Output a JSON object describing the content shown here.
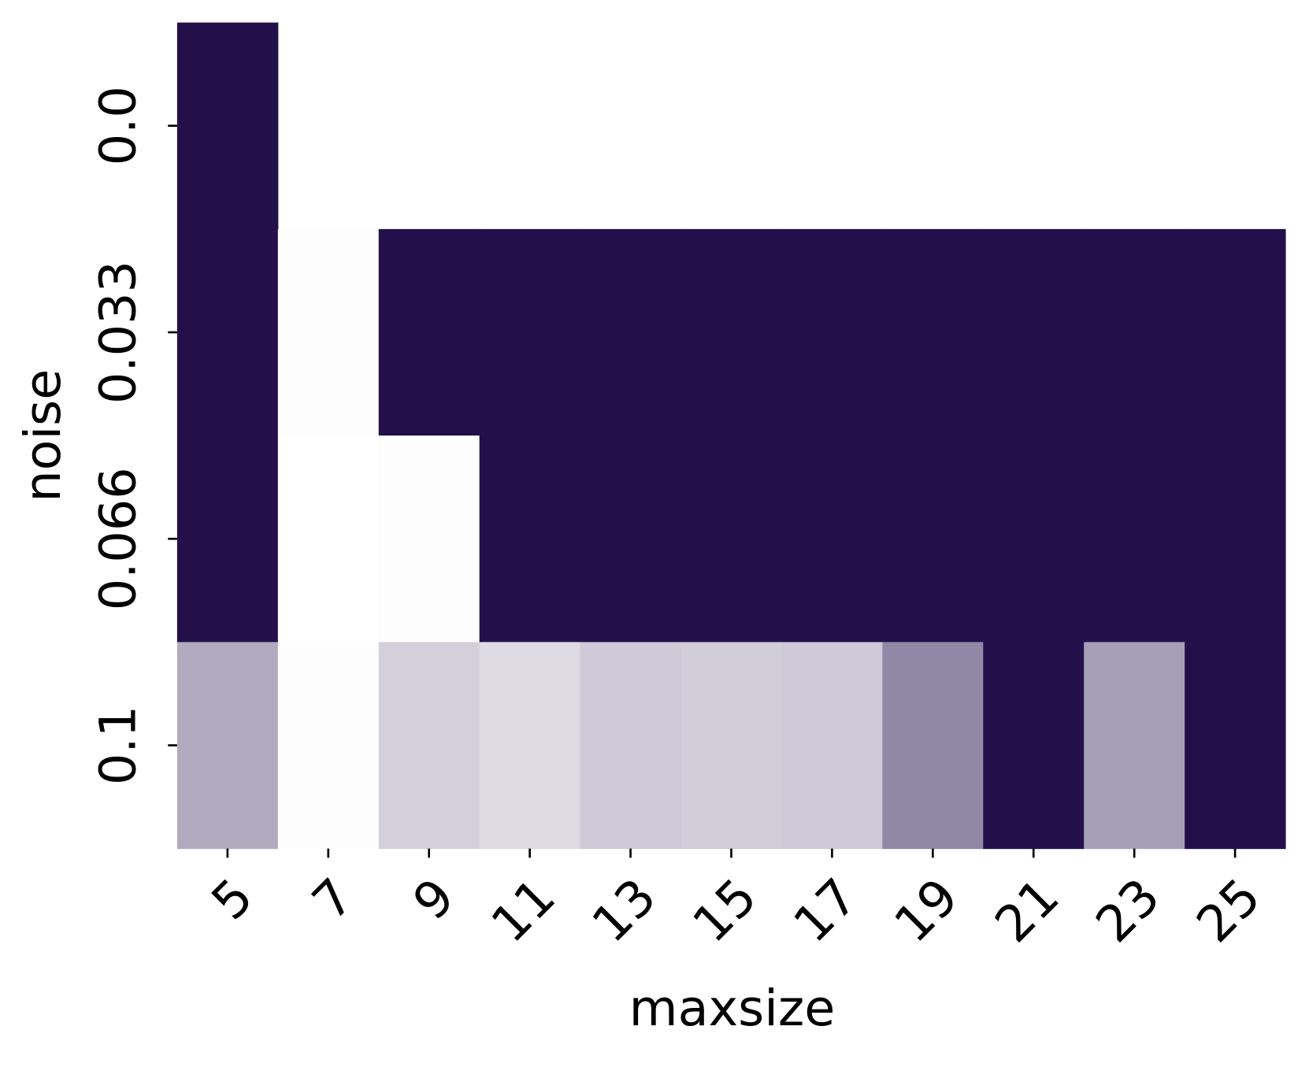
{
  "chart_data": {
    "type": "heatmap",
    "x_label": "maxsize",
    "y_label": "noise",
    "x_categories": [
      "5",
      "7",
      "9",
      "11",
      "13",
      "15",
      "17",
      "19",
      "21",
      "23",
      "25"
    ],
    "y_categories": [
      "0.0",
      "0.033",
      "0.066",
      "0.1"
    ],
    "values": [
      [
        1,
        null,
        null,
        null,
        null,
        null,
        null,
        null,
        null,
        null,
        null
      ],
      [
        1,
        0.01,
        1,
        1,
        1,
        1,
        1,
        1,
        1,
        1,
        1
      ],
      [
        1,
        0,
        0.01,
        1,
        1,
        1,
        1,
        1,
        1,
        1,
        1
      ],
      [
        0.35,
        0.01,
        0.2,
        0.15,
        0.22,
        0.21,
        0.22,
        0.5,
        1,
        0.4,
        1
      ]
    ],
    "colormap": [
      "#ffffff",
      "#23104b"
    ],
    "vlim": [
      0,
      1
    ]
  }
}
